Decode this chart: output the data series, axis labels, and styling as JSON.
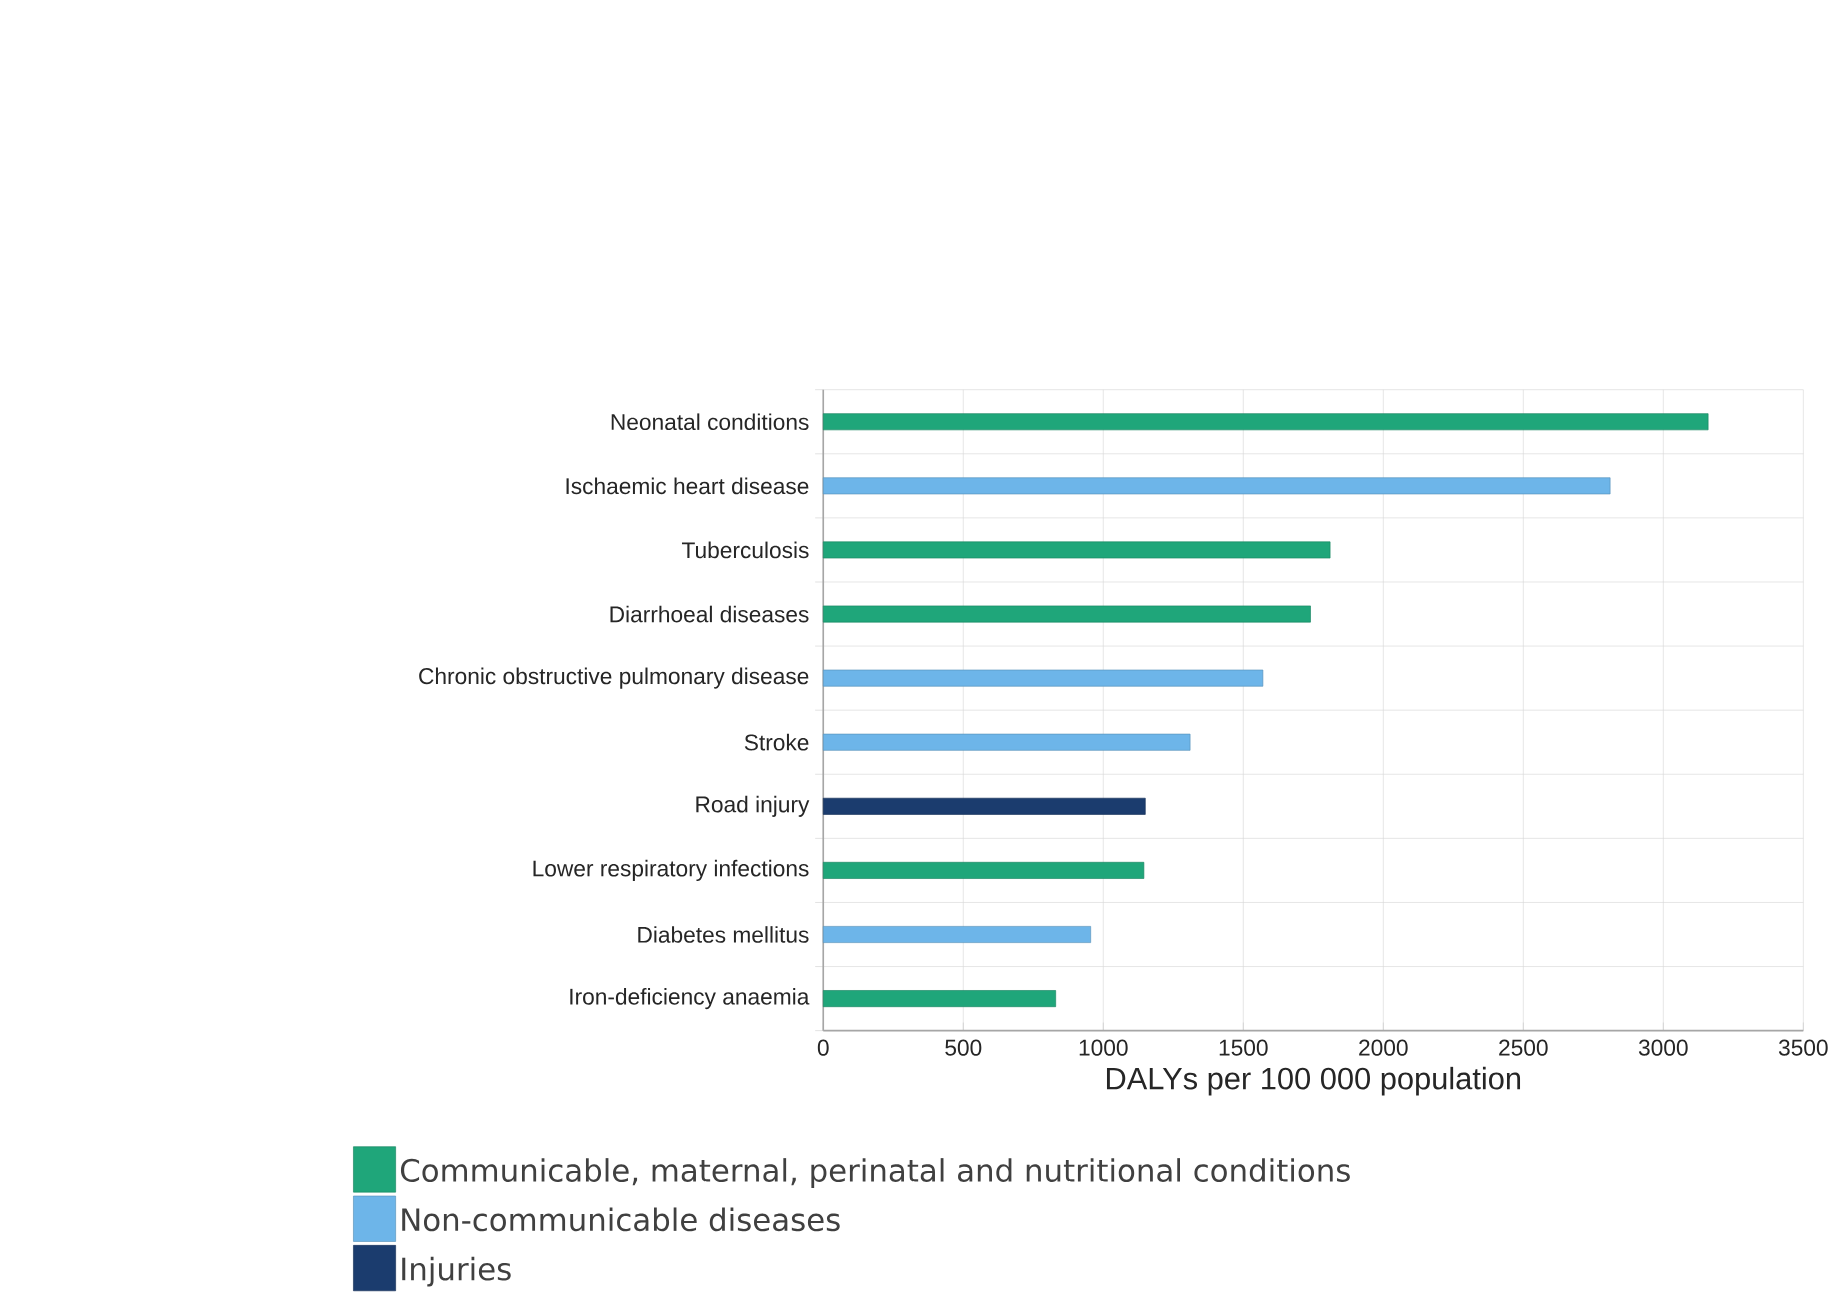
{
  "chart_data": {
    "type": "bar",
    "orientation": "horizontal",
    "xlabel": "DALYs per 100 000 population",
    "categories": [
      "Neonatal conditions",
      "Ischaemic heart disease",
      "Tuberculosis",
      "Diarrhoeal diseases",
      "Chronic obstructive pulmonary disease",
      "Stroke",
      "Road injury",
      "Lower respiratory infections",
      "Diabetes mellitus",
      "Iron-deficiency anaemia"
    ],
    "series": [
      {
        "name": "Communicable, maternal, perinatal and nutritional conditions",
        "color": "#1fa67a",
        "values": [
          3160,
          null,
          1810,
          1740,
          null,
          null,
          null,
          1145,
          null,
          830
        ]
      },
      {
        "name": "Non-communicable diseases",
        "color": "#6db5e9",
        "values": [
          null,
          2810,
          null,
          null,
          1570,
          1310,
          null,
          null,
          955,
          null
        ]
      },
      {
        "name": "Injuries",
        "color": "#1b3c6e",
        "values": [
          null,
          null,
          null,
          null,
          null,
          null,
          1150,
          null,
          null,
          null
        ]
      }
    ],
    "xlim": [
      0,
      3500
    ],
    "xticks": [
      0,
      500,
      1000,
      1500,
      2000,
      2500,
      3000,
      3500
    ],
    "grid": true,
    "legend": "bottom left"
  }
}
